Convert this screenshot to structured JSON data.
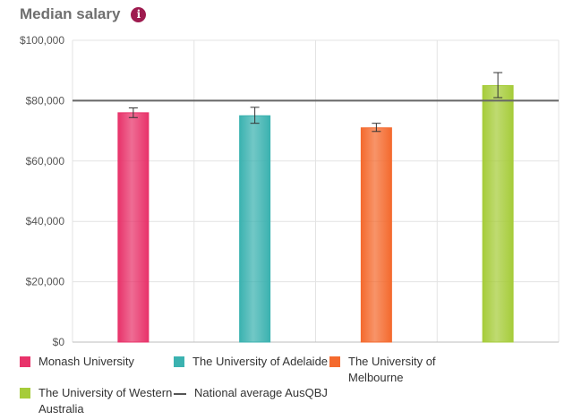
{
  "header": {
    "title": "Median salary",
    "info_icon": "info-icon",
    "info_glyph": "i",
    "info_color": "#9e1b4f"
  },
  "chart_data": {
    "type": "bar",
    "title": "Median salary",
    "xlabel": "",
    "ylabel": "",
    "ylim": [
      0,
      100000
    ],
    "yticks": [
      0,
      20000,
      40000,
      60000,
      80000,
      100000
    ],
    "ytick_labels": [
      "$0",
      "$20,000",
      "$40,000",
      "$60,000",
      "$80,000",
      "$100,000"
    ],
    "grid": true,
    "series": [
      {
        "name": "Monash University",
        "value": 76000,
        "error": [
          74400,
          77600
        ],
        "color": "#e8336a"
      },
      {
        "name": "The University of Adelaide",
        "value": 75000,
        "error": [
          72500,
          77800
        ],
        "color": "#3bb2b0"
      },
      {
        "name": "The University of Melbourne",
        "value": 71000,
        "error": [
          69800,
          72500
        ],
        "color": "#f46a2e"
      },
      {
        "name": "The University of Western Australia",
        "value": 85000,
        "error": [
          81000,
          89300
        ],
        "color": "#a6cc3a"
      }
    ],
    "reference_line": {
      "name": "National average  AusQBJ",
      "value": 80000,
      "color": "#666666"
    },
    "legend_position": "bottom"
  },
  "legend": {
    "items": [
      {
        "label": "Monash University",
        "color": "#e8336a"
      },
      {
        "label": "The University of Adelaide",
        "color": "#3bb2b0"
      },
      {
        "label": "The University of Melbourne",
        "color": "#f46a2e"
      },
      {
        "label": "The University of Western Australia",
        "color": "#a6cc3a"
      },
      {
        "label": "National average  AusQBJ",
        "color": "#555555"
      }
    ]
  }
}
